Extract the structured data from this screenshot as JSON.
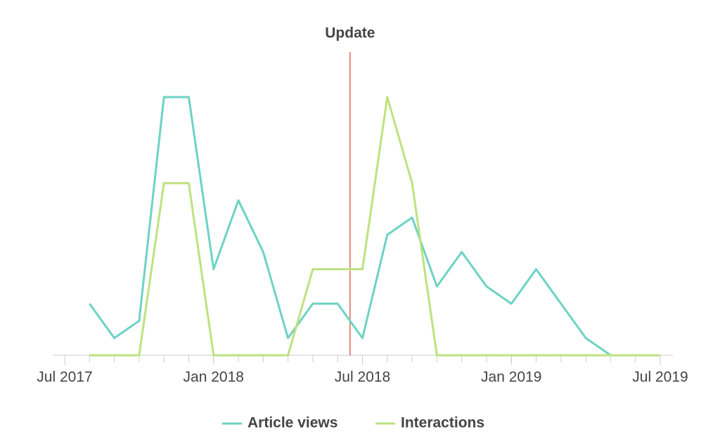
{
  "chart_data": {
    "type": "line",
    "x": [
      "2017-08",
      "2017-09",
      "2017-10",
      "2017-11",
      "2017-12",
      "2018-01",
      "2018-02",
      "2018-03",
      "2018-04",
      "2018-05",
      "2018-06",
      "2018-07",
      "2018-08",
      "2018-09",
      "2018-10",
      "2018-11",
      "2018-12",
      "2019-01",
      "2019-02",
      "2019-03",
      "2019-04",
      "2019-05",
      "2019-06",
      "2019-07"
    ],
    "series": [
      {
        "name": "Article views",
        "color": "#6dd3c4",
        "values": [
          3,
          1,
          2,
          15,
          15,
          5,
          9,
          6,
          1,
          3,
          3,
          1,
          7,
          8,
          4,
          6,
          4,
          3,
          5,
          3,
          1,
          0,
          null,
          null
        ]
      },
      {
        "name": "Interactions",
        "color": "#bde27f",
        "values": [
          0,
          0,
          0,
          10,
          10,
          0,
          0,
          0,
          0,
          5,
          5,
          5,
          15,
          10,
          0,
          0,
          0,
          0,
          0,
          0,
          0,
          0,
          0,
          0
        ]
      }
    ],
    "xlim": [
      "2017-07",
      "2019-07"
    ],
    "xticks": [
      {
        "value": "2017-07",
        "label": "Jul 2017"
      },
      {
        "value": "2018-01",
        "label": "Jan 2018"
      },
      {
        "value": "2018-07",
        "label": "Jul 2018"
      },
      {
        "value": "2019-01",
        "label": "Jan 2019"
      },
      {
        "value": "2019-07",
        "label": "Jul 2019"
      }
    ],
    "ylim": [
      0,
      15
    ],
    "annotation": {
      "label": "Update",
      "x": "2018-06",
      "color": "#e0645c"
    },
    "legend": "bottom"
  }
}
